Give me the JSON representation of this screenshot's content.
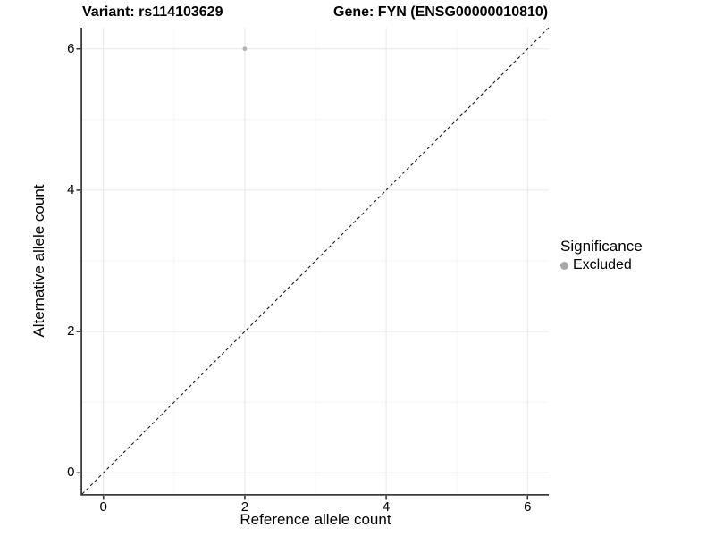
{
  "figure": {
    "title_left": "Variant: rs114103629",
    "title_right": "Gene: FYN (ENSG00000010810)"
  },
  "chart_data": {
    "type": "scatter",
    "title_left": "Variant: rs114103629",
    "title_right": "Gene: FYN (ENSG00000010810)",
    "xlabel": "Reference allele count",
    "ylabel": "Alternative allele count",
    "xlim": [
      -0.3,
      6.3
    ],
    "ylim": [
      -0.3,
      6.3
    ],
    "x_major_ticks": [
      0,
      2,
      4,
      6
    ],
    "y_major_ticks": [
      0,
      2,
      4,
      6
    ],
    "x_minor_ticks": [
      1,
      3,
      5
    ],
    "y_minor_ticks": [
      1,
      3,
      5
    ],
    "grid": true,
    "legend_position": "right",
    "series": [
      {
        "name": "Excluded",
        "color": "#b2b2b2",
        "points": [
          {
            "x": 2,
            "y": 6
          }
        ]
      }
    ],
    "reference_line": {
      "type": "identity",
      "slope": 1,
      "intercept": 0,
      "style": "dashed",
      "color": "#1a1a1a"
    }
  },
  "legend": {
    "title": "Significance",
    "items": [
      {
        "label": "Excluded",
        "swatch_color": "#a8a8a8"
      }
    ]
  },
  "colors": {
    "background": "#ffffff",
    "grid_major": "#e7e7e7",
    "grid_minor": "#f4f4f4",
    "axis_line": "#3c3c3c",
    "tick_mark": "#3c3c3c",
    "text": "#000000"
  }
}
